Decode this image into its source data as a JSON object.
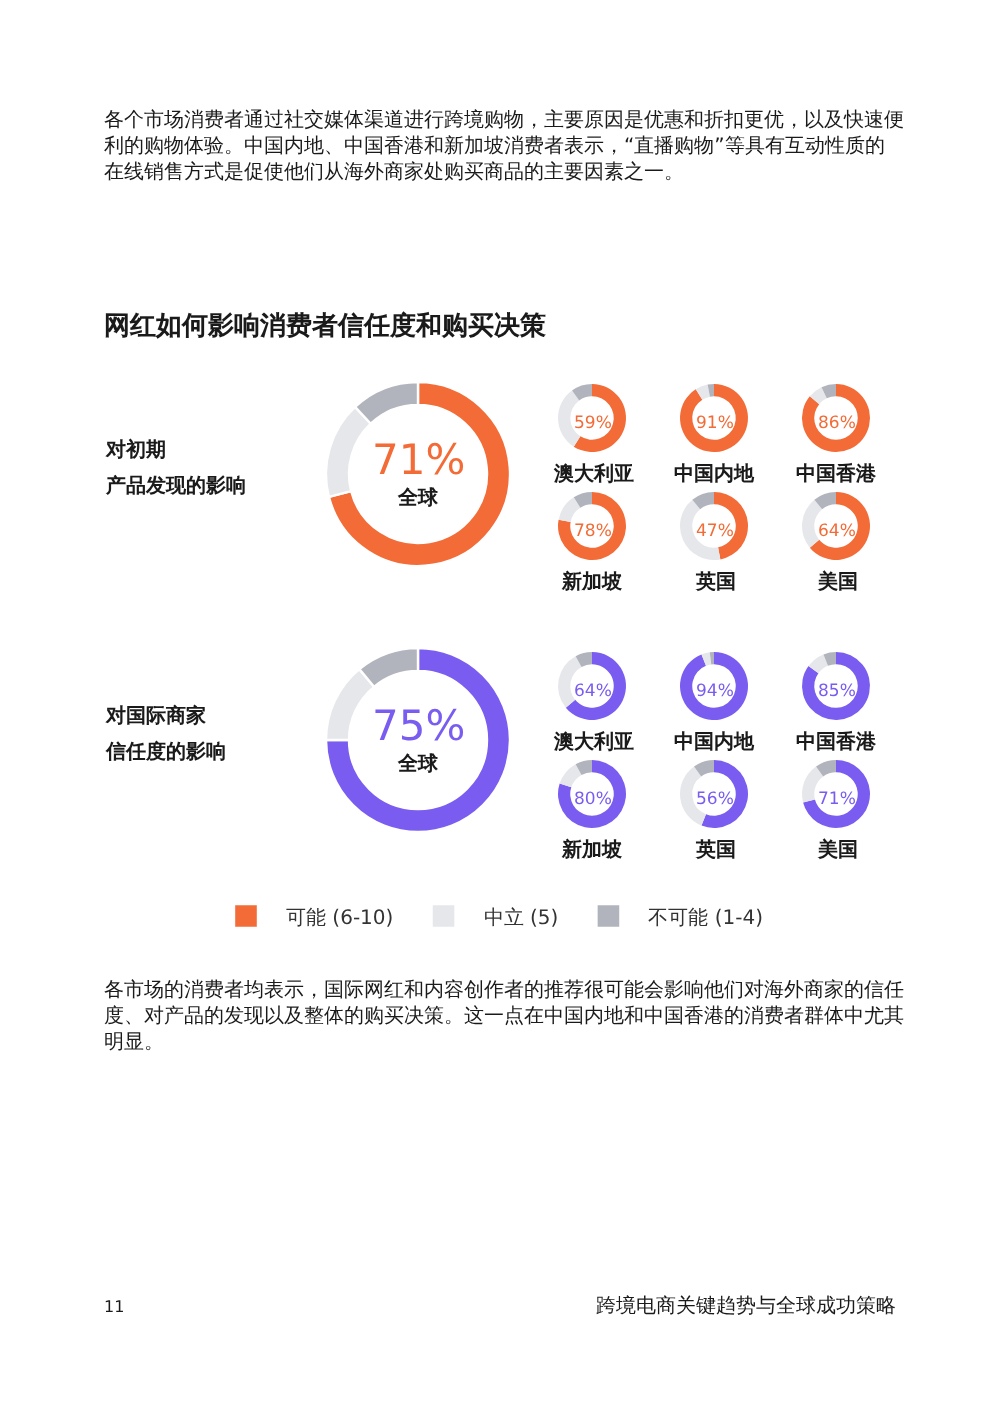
{
  "chart_data": [
    {
      "type": "other",
      "title": "网红如何影响消费者信任度和购买决策",
      "annotations": [
        "各个市场消费者通过社交媒体渠道进行跨境购物，主要原因是优惠和折扣更优，以及快速便利的购物体验。中国内地、中国香港和新加坡消费者表示，“直播购物”等具有互动性质的在线销售方式是促使他们从海外商家处购买商品的主要因素之一。",
        "各市场的消费者均表示，国际网红和内容创作者的推荐很可能会影响他们对海外商家的信任度、对产品的发现以及整体的购买决策。这一点在中国内地和中国香港的消费者群体中尤其明显。",
        "11",
        "跨境电商关键趋势与全球成功策略"
      ]
    },
    {
      "type": "donut",
      "title": "全球",
      "categories": [
        "可能 (6-10)",
        "中立 (5)",
        "不可能 (1-4)"
      ],
      "values": [
        71,
        17,
        12
      ],
      "colors": [
        "#f36b36",
        "#e6e7eb",
        "#b1b4bd"
      ],
      "value_labels": [
        "71%",
        null,
        null
      ],
      "annotations": [
        "对初期",
        "产品发现的影响"
      ],
      "legend": "bottom"
    },
    {
      "type": "donut",
      "title": "澳大利亚",
      "values": [
        59,
        31,
        10
      ],
      "colors": [
        "#f36b36",
        "#e6e7eb",
        "#b1b4bd"
      ],
      "value_labels": [
        "59%",
        null,
        null
      ]
    },
    {
      "type": "donut",
      "title": "中国内地",
      "values": [
        91,
        6,
        3
      ],
      "colors": [
        "#f36b36",
        "#e6e7eb",
        "#b1b4bd"
      ],
      "value_labels": [
        "91%",
        null,
        null
      ]
    },
    {
      "type": "donut",
      "title": "中国香港",
      "values": [
        86,
        7,
        7
      ],
      "colors": [
        "#f36b36",
        "#e6e7eb",
        "#b1b4bd"
      ],
      "value_labels": [
        "86%",
        null,
        null
      ]
    },
    {
      "type": "donut",
      "title": "新加坡",
      "values": [
        78,
        13,
        9
      ],
      "colors": [
        "#f36b36",
        "#e6e7eb",
        "#b1b4bd"
      ],
      "value_labels": [
        "78%",
        null,
        null
      ]
    },
    {
      "type": "donut",
      "title": "英国",
      "values": [
        47,
        42,
        11
      ],
      "colors": [
        "#f36b36",
        "#e6e7eb",
        "#b1b4bd"
      ],
      "value_labels": [
        "47%",
        null,
        null
      ]
    },
    {
      "type": "donut",
      "title": "美国",
      "values": [
        64,
        25,
        11
      ],
      "colors": [
        "#f36b36",
        "#e6e7eb",
        "#b1b4bd"
      ],
      "value_labels": [
        "64%",
        null,
        null
      ]
    },
    {
      "type": "donut",
      "title": "全球",
      "values": [
        75,
        14,
        11
      ],
      "colors": [
        "#7a5cf0",
        "#e6e7eb",
        "#b1b4bd"
      ],
      "value_labels": [
        "75%",
        null,
        null
      ],
      "annotations": [
        "对国际商家",
        "信任度的影响"
      ]
    },
    {
      "type": "donut",
      "title": "澳大利亚",
      "values": [
        64,
        28,
        8
      ],
      "colors": [
        "#7a5cf0",
        "#e6e7eb",
        "#b1b4bd"
      ],
      "value_labels": [
        "64%",
        null,
        null
      ]
    },
    {
      "type": "donut",
      "title": "中国内地",
      "values": [
        94,
        4,
        2
      ],
      "colors": [
        "#7a5cf0",
        "#e6e7eb",
        "#b1b4bd"
      ],
      "value_labels": [
        "94%",
        null,
        null
      ]
    },
    {
      "type": "donut",
      "title": "中国香港",
      "values": [
        85,
        9,
        6
      ],
      "colors": [
        "#7a5cf0",
        "#e6e7eb",
        "#b1b4bd"
      ],
      "value_labels": [
        "85%",
        null,
        null
      ]
    },
    {
      "type": "donut",
      "title": "新加坡",
      "values": [
        80,
        12,
        8
      ],
      "colors": [
        "#7a5cf0",
        "#e6e7eb",
        "#b1b4bd"
      ],
      "value_labels": [
        "80%",
        null,
        null
      ]
    },
    {
      "type": "donut",
      "title": "英国",
      "values": [
        56,
        34,
        10
      ],
      "colors": [
        "#7a5cf0",
        "#e6e7eb",
        "#b1b4bd"
      ],
      "value_labels": [
        "56%",
        null,
        null
      ]
    },
    {
      "type": "donut",
      "title": "美国",
      "values": [
        71,
        19,
        10
      ],
      "colors": [
        "#7a5cf0",
        "#e6e7eb",
        "#b1b4bd"
      ],
      "value_labels": [
        "71%",
        null,
        null
      ]
    }
  ]
}
